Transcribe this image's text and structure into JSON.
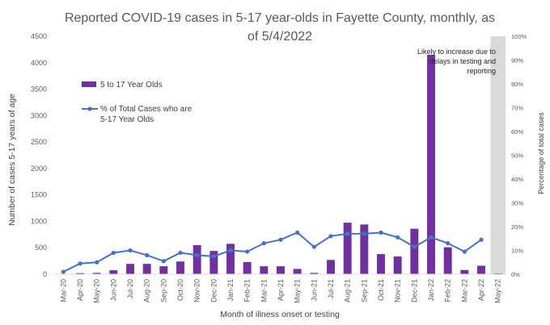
{
  "chart_data": {
    "type": "bar",
    "title": "Reported COVID-19 cases in 5-17 year-olds in Fayette County, monthly, as of 5/4/2022",
    "title_lines": [
      "Reported COVID-19 cases in 5-17 year-olds in Fayette County, monthly, as",
      "of 5/4/2022"
    ],
    "xlabel": "Month of illness onset or testing",
    "ylabel": "Number of cases 5-17 years of age",
    "ylabel_right": "Percentage of total cases",
    "ylim": [
      0,
      4500
    ],
    "y_ticks": [
      0,
      500,
      1000,
      1500,
      2000,
      2500,
      3000,
      3500,
      4000,
      4500
    ],
    "ylim_right": [
      0,
      100
    ],
    "y_ticks_right": [
      "0%",
      "10%",
      "20%",
      "30%",
      "40%",
      "50%",
      "60%",
      "70%",
      "80%",
      "90%",
      "100%"
    ],
    "categories": [
      "Mar-20",
      "Apr-20",
      "May-20",
      "Jun-20",
      "Jul-20",
      "Aug-20",
      "Sep-20",
      "Oct-20",
      "Nov-20",
      "Dec-20",
      "Jan-21",
      "Feb-21",
      "Mar-21",
      "Apr-21",
      "May-21",
      "Jun-21",
      "Jul-21",
      "Aug-21",
      "Sep-21",
      "Oct-21",
      "Nov-21",
      "Dec-21",
      "Jan-22",
      "Feb-22",
      "Mar-22",
      "Apr-22",
      "May-22"
    ],
    "series": [
      {
        "name": "5 to 17 Year Olds",
        "kind": "bar",
        "color": "#7030a0",
        "values": [
          5,
          20,
          25,
          75,
          195,
          195,
          150,
          240,
          550,
          440,
          575,
          230,
          150,
          150,
          100,
          25,
          270,
          975,
          940,
          380,
          335,
          860,
          4150,
          510,
          80,
          160,
          15
        ]
      },
      {
        "name": "% of Total Cases who are 5-17 Year Olds",
        "kind": "line",
        "color": "#4472c4",
        "axis": "right",
        "values": [
          1,
          4.5,
          5,
          9,
          10,
          8,
          5.5,
          9,
          8,
          7.5,
          10,
          9.5,
          13,
          14.5,
          17.5,
          11.5,
          16,
          17,
          17,
          17.5,
          15.5,
          11.5,
          15.5,
          13,
          9.5,
          14.5,
          null
        ]
      }
    ],
    "annotation": {
      "lines": [
        "Likely to increase due to",
        "delays in testing and",
        "reporting"
      ],
      "shaded_category": "May-22",
      "shade_color": "#d9d9d9"
    },
    "legend_position": "upper-left",
    "grid": false
  }
}
